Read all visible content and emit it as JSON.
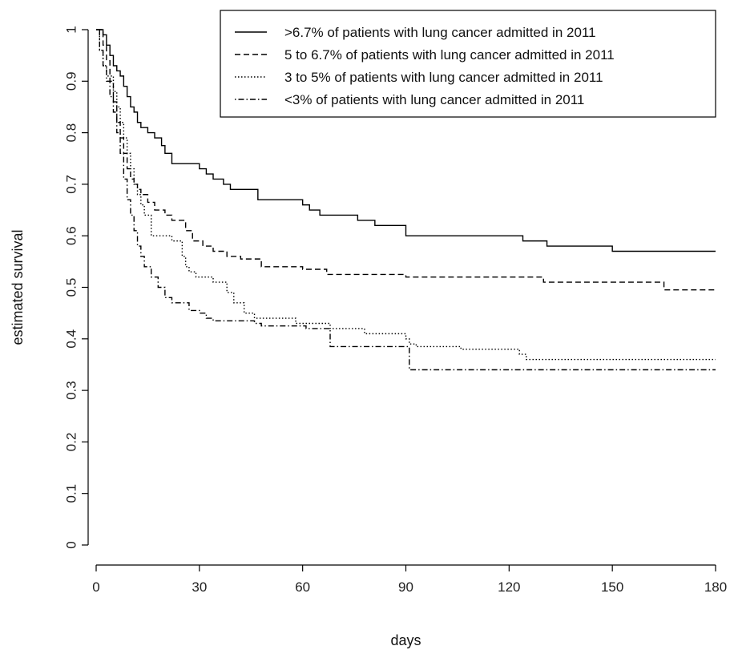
{
  "chart_data": {
    "type": "line",
    "subtype": "step",
    "xlabel": "days",
    "ylabel": "estimated survival",
    "xlim": [
      0,
      180
    ],
    "ylim": [
      0,
      1
    ],
    "x_ticks": [
      "0",
      "30",
      "60",
      "90",
      "120",
      "150",
      "180"
    ],
    "y_ticks": [
      "0",
      "0.1",
      "0.2",
      "0.3",
      "0.4",
      "0.5",
      "0.6",
      "0.7",
      "0.8",
      "0.9",
      "1"
    ],
    "grid": false,
    "legend_position": "top-right",
    "series": [
      {
        "name": ">6.7% of patients with lung cancer admitted in 2011",
        "line_style": "solid",
        "color": "#000000",
        "points": [
          [
            0,
            1.0
          ],
          [
            2,
            0.99
          ],
          [
            3,
            0.97
          ],
          [
            4,
            0.95
          ],
          [
            5,
            0.93
          ],
          [
            6,
            0.92
          ],
          [
            7,
            0.91
          ],
          [
            8,
            0.89
          ],
          [
            9,
            0.87
          ],
          [
            10,
            0.85
          ],
          [
            11,
            0.84
          ],
          [
            12,
            0.82
          ],
          [
            13,
            0.81
          ],
          [
            15,
            0.8
          ],
          [
            17,
            0.79
          ],
          [
            19,
            0.775
          ],
          [
            20,
            0.76
          ],
          [
            22,
            0.74
          ],
          [
            30,
            0.73
          ],
          [
            32,
            0.72
          ],
          [
            34,
            0.71
          ],
          [
            37,
            0.7
          ],
          [
            39,
            0.69
          ],
          [
            47,
            0.67
          ],
          [
            60,
            0.66
          ],
          [
            62,
            0.65
          ],
          [
            65,
            0.64
          ],
          [
            76,
            0.63
          ],
          [
            81,
            0.62
          ],
          [
            90,
            0.6
          ],
          [
            124,
            0.59
          ],
          [
            131,
            0.58
          ],
          [
            150,
            0.57
          ],
          [
            180,
            0.57
          ]
        ]
      },
      {
        "name": "5 to 6.7% of patients with lung cancer admitted in 2011",
        "line_style": "dashed",
        "color": "#000000",
        "points": [
          [
            0,
            1.0
          ],
          [
            2,
            0.97
          ],
          [
            3,
            0.94
          ],
          [
            4,
            0.9
          ],
          [
            5,
            0.86
          ],
          [
            6,
            0.82
          ],
          [
            7,
            0.79
          ],
          [
            8,
            0.76
          ],
          [
            9,
            0.73
          ],
          [
            10,
            0.71
          ],
          [
            11,
            0.7
          ],
          [
            12,
            0.69
          ],
          [
            13,
            0.68
          ],
          [
            15,
            0.665
          ],
          [
            17,
            0.65
          ],
          [
            20,
            0.64
          ],
          [
            22,
            0.63
          ],
          [
            26,
            0.61
          ],
          [
            28,
            0.59
          ],
          [
            31,
            0.58
          ],
          [
            34,
            0.57
          ],
          [
            38,
            0.56
          ],
          [
            42,
            0.555
          ],
          [
            48,
            0.54
          ],
          [
            60,
            0.535
          ],
          [
            67,
            0.525
          ],
          [
            90,
            0.52
          ],
          [
            130,
            0.51
          ],
          [
            165,
            0.495
          ],
          [
            180,
            0.495
          ]
        ]
      },
      {
        "name": "3 to 5% of patients with lung cancer admitted in 2011",
        "line_style": "dotted",
        "color": "#000000",
        "points": [
          [
            0,
            1.0
          ],
          [
            1,
            0.96
          ],
          [
            2,
            0.93
          ],
          [
            3,
            0.91
          ],
          [
            5,
            0.88
          ],
          [
            6,
            0.85
          ],
          [
            7,
            0.82
          ],
          [
            8,
            0.79
          ],
          [
            9,
            0.76
          ],
          [
            10,
            0.73
          ],
          [
            11,
            0.7
          ],
          [
            12,
            0.68
          ],
          [
            13,
            0.66
          ],
          [
            14,
            0.64
          ],
          [
            16,
            0.6
          ],
          [
            22,
            0.59
          ],
          [
            25,
            0.56
          ],
          [
            26,
            0.54
          ],
          [
            27,
            0.53
          ],
          [
            29,
            0.52
          ],
          [
            34,
            0.51
          ],
          [
            38,
            0.49
          ],
          [
            40,
            0.47
          ],
          [
            43,
            0.45
          ],
          [
            46,
            0.44
          ],
          [
            58,
            0.43
          ],
          [
            68,
            0.42
          ],
          [
            78,
            0.41
          ],
          [
            90,
            0.4
          ],
          [
            91,
            0.39
          ],
          [
            93,
            0.385
          ],
          [
            106,
            0.38
          ],
          [
            123,
            0.37
          ],
          [
            125,
            0.36
          ],
          [
            180,
            0.36
          ]
        ]
      },
      {
        "name": "<3% of patients with lung cancer admitted in 2011",
        "line_style": "dotdash",
        "color": "#000000",
        "points": [
          [
            0,
            1.0
          ],
          [
            1,
            0.96
          ],
          [
            2,
            0.93
          ],
          [
            3,
            0.9
          ],
          [
            4,
            0.87
          ],
          [
            5,
            0.84
          ],
          [
            6,
            0.8
          ],
          [
            7,
            0.76
          ],
          [
            8,
            0.71
          ],
          [
            9,
            0.67
          ],
          [
            10,
            0.64
          ],
          [
            11,
            0.61
          ],
          [
            12,
            0.58
          ],
          [
            13,
            0.56
          ],
          [
            14,
            0.54
          ],
          [
            16,
            0.52
          ],
          [
            18,
            0.5
          ],
          [
            20,
            0.48
          ],
          [
            22,
            0.47
          ],
          [
            27,
            0.455
          ],
          [
            30,
            0.45
          ],
          [
            32,
            0.44
          ],
          [
            34,
            0.435
          ],
          [
            46,
            0.43
          ],
          [
            48,
            0.425
          ],
          [
            61,
            0.42
          ],
          [
            68,
            0.385
          ],
          [
            90,
            0.385
          ],
          [
            91,
            0.34
          ],
          [
            180,
            0.34
          ]
        ]
      }
    ]
  }
}
